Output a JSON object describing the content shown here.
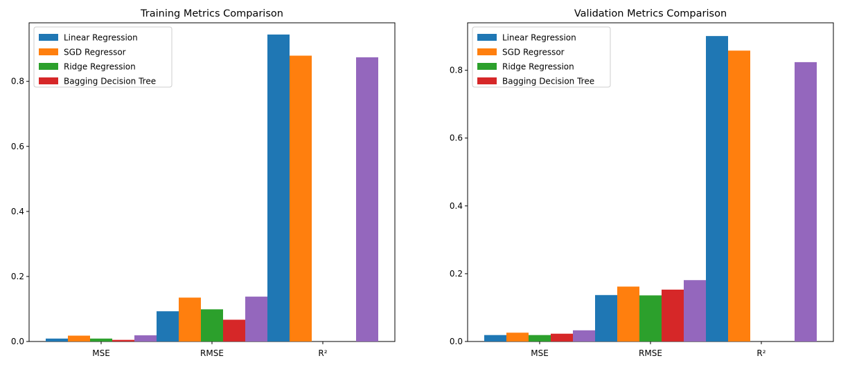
{
  "chart_data": [
    {
      "type": "bar",
      "title": "Training Metrics Comparison",
      "categories": [
        "MSE",
        "RMSE",
        "R²"
      ],
      "ylim": [
        0,
        0.98
      ],
      "yticks": [
        "0.0",
        "0.2",
        "0.4",
        "0.6",
        "0.8"
      ],
      "ytick_values": [
        0,
        0.2,
        0.4,
        0.6,
        0.8
      ],
      "legend_position": "upper-left",
      "series": [
        {
          "name": "Linear Regression",
          "color": "#1f77b4",
          "values": [
            0.009,
            0.093,
            0.944
          ]
        },
        {
          "name": "SGD Regressor",
          "color": "#ff7f0e",
          "values": [
            0.018,
            0.135,
            0.879
          ]
        },
        {
          "name": "Ridge Regression",
          "color": "#2ca02c",
          "values": [
            0.009,
            0.099,
            0.0
          ]
        },
        {
          "name": "Bagging Decision Tree",
          "color": "#d62728",
          "values": [
            0.005,
            0.067,
            0.0
          ]
        },
        {
          "name": "",
          "color": "#9467bd",
          "values": [
            0.019,
            0.138,
            0.874
          ]
        }
      ]
    },
    {
      "type": "bar",
      "title": "Validation Metrics Comparison",
      "categories": [
        "MSE",
        "RMSE",
        "R²"
      ],
      "ylim": [
        0,
        0.94
      ],
      "yticks": [
        "0.0",
        "0.2",
        "0.4",
        "0.6",
        "0.8"
      ],
      "ytick_values": [
        0,
        0.2,
        0.4,
        0.6,
        0.8
      ],
      "legend_position": "upper-left",
      "series": [
        {
          "name": "Linear Regression",
          "color": "#1f77b4",
          "values": [
            0.019,
            0.137,
            0.901
          ]
        },
        {
          "name": "SGD Regressor",
          "color": "#ff7f0e",
          "values": [
            0.026,
            0.162,
            0.858
          ]
        },
        {
          "name": "Ridge Regression",
          "color": "#2ca02c",
          "values": [
            0.019,
            0.136,
            0.0
          ]
        },
        {
          "name": "Bagging Decision Tree",
          "color": "#d62728",
          "values": [
            0.023,
            0.153,
            0.0
          ]
        },
        {
          "name": "",
          "color": "#9467bd",
          "values": [
            0.033,
            0.181,
            0.824
          ]
        }
      ]
    }
  ]
}
